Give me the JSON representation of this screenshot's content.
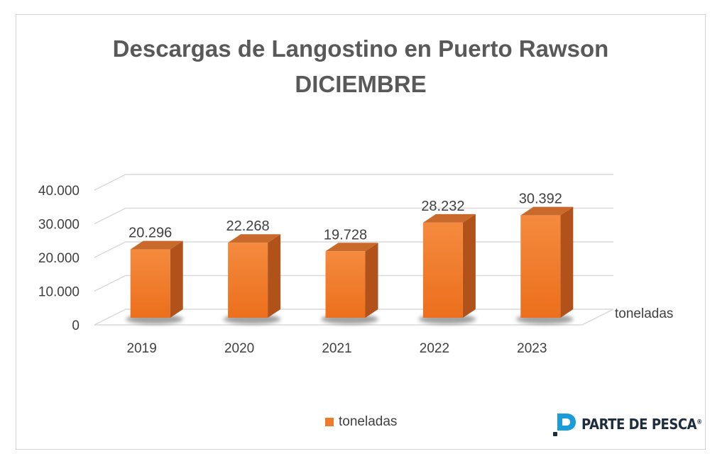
{
  "chart_data": {
    "type": "bar",
    "title": "Descargas de Langostino en Puerto Rawson",
    "subtitle": "DICIEMBRE",
    "categories": [
      "2019",
      "2020",
      "2021",
      "2022",
      "2023"
    ],
    "series": [
      {
        "name": "toneladas",
        "values": [
          20296,
          22268,
          19728,
          28232,
          30392
        ]
      }
    ],
    "value_labels": [
      "20.296",
      "22.268",
      "19.728",
      "28.232",
      "30.392"
    ],
    "y_ticks": [
      "0",
      "10.000",
      "20.000",
      "30.000",
      "40.000"
    ],
    "ylim": [
      0,
      40000
    ],
    "depth_axis_label": "toneladas",
    "legend": {
      "position": "bottom",
      "label": "toneladas"
    },
    "grid": true,
    "style": "3d-column",
    "colors": {
      "bar_front": "#f07f32",
      "bar_side": "#b0521a",
      "bar_top": "#c96a2c",
      "grid": "#d9d9d9",
      "text": "#404040",
      "title": "#595959"
    }
  },
  "brand": {
    "name": "PARTE DE PESCA",
    "mark": "®",
    "color": "#1d2d3e",
    "accent": "#1a9cd8"
  }
}
